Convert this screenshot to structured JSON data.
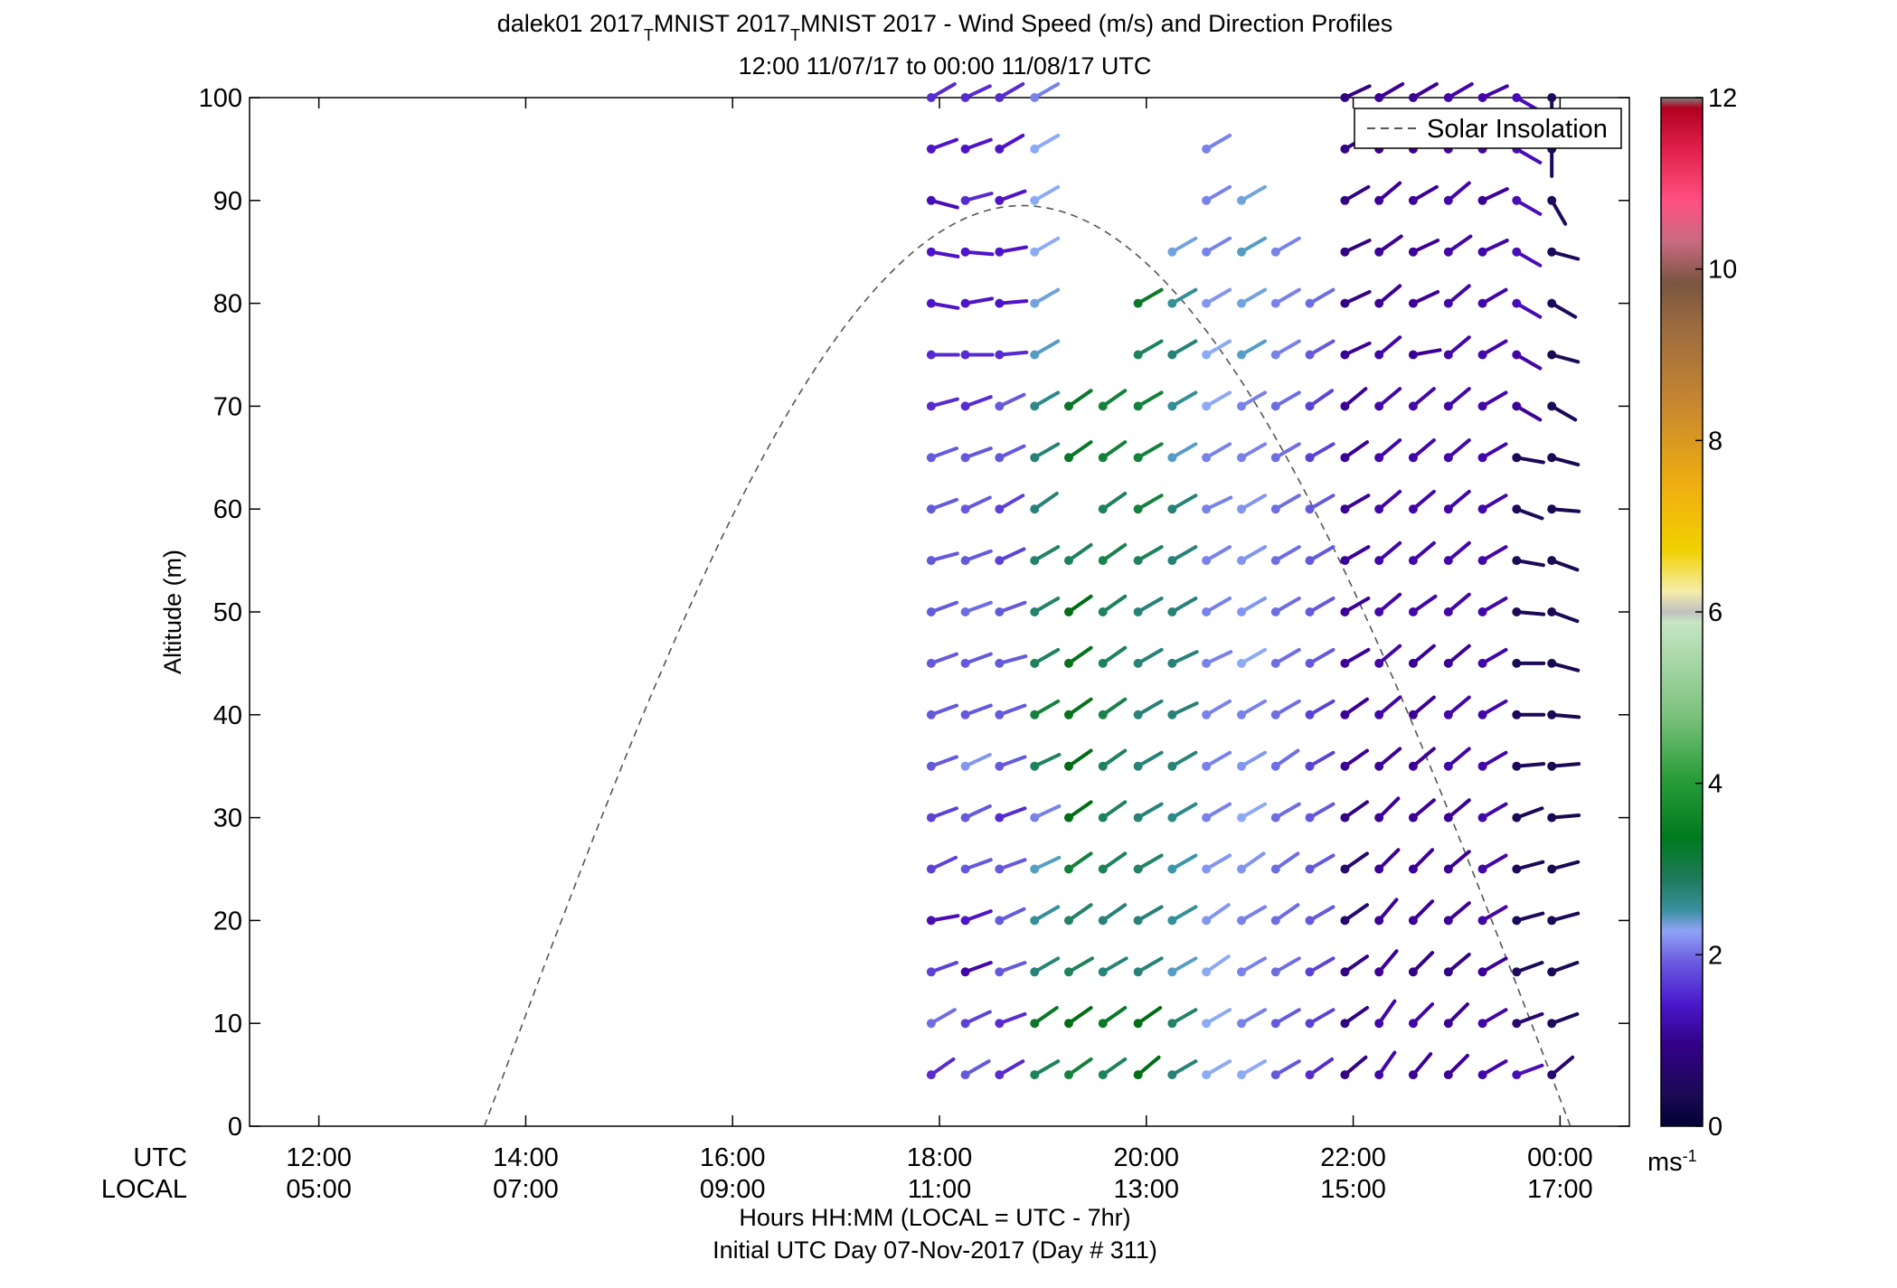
{
  "chart_data": {
    "type": "wind-barb-profile",
    "title": {
      "part1": "dalek01 2017",
      "sub1": "T",
      "part2": "MNIST 2017",
      "sub2": "T",
      "part3": "MNIST 2017 - Wind Speed (m/s) and Direction Profiles"
    },
    "subtitle": "12:00 11/07/17 to 00:00 11/08/17  UTC",
    "ylabel": "Altitude (m)",
    "xlabel": "Hours HH:MM  (LOCAL = UTC - 7hr)",
    "xlabel2": "Initial UTC Day 07-Nov-2017 (Day # 311)",
    "row_label_utc": "UTC",
    "row_label_local": "LOCAL",
    "xlim_hours": [
      11.33,
      24.67
    ],
    "ylim": [
      0,
      100
    ],
    "yticks": [
      0,
      10,
      20,
      30,
      40,
      50,
      60,
      70,
      80,
      90,
      100
    ],
    "xticks": [
      {
        "hour": 12,
        "utc": "12:00",
        "local": "05:00"
      },
      {
        "hour": 14,
        "utc": "14:00",
        "local": "07:00"
      },
      {
        "hour": 16,
        "utc": "16:00",
        "local": "09:00"
      },
      {
        "hour": 18,
        "utc": "18:00",
        "local": "11:00"
      },
      {
        "hour": 20,
        "utc": "20:00",
        "local": "13:00"
      },
      {
        "hour": 22,
        "utc": "22:00",
        "local": "15:00"
      },
      {
        "hour": 24,
        "utc": "00:00",
        "local": "17:00"
      }
    ],
    "legend": {
      "label": "Solar Insolation",
      "position": "top-right",
      "style": "dashed",
      "color": "#555555"
    },
    "solar_insolation": {
      "start_hour": 13.6,
      "peak_hour": 18.8,
      "peak_alt": 89.5,
      "end_hour": 24.1
    },
    "colorbar": {
      "label": "ms",
      "label_sup": "-1",
      "ticks": [
        0,
        2,
        4,
        6,
        8,
        10,
        12
      ],
      "range": [
        0,
        12
      ]
    },
    "heights": [
      5,
      10,
      15,
      20,
      25,
      30,
      35,
      40,
      45,
      50,
      55,
      60,
      65,
      70,
      75,
      80,
      85,
      90,
      95,
      100
    ],
    "times_hours": [
      17.92,
      18.25,
      18.58,
      18.92,
      19.25,
      19.58,
      19.92,
      20.25,
      20.58,
      20.92,
      21.25,
      21.58,
      21.92,
      22.25,
      22.58,
      22.92,
      23.25,
      23.58,
      23.92
    ],
    "speed_rows": [
      [
        1.6,
        1.8,
        1.6,
        3.0,
        3.2,
        3.0,
        3.6,
        2.8,
        2.2,
        2.2,
        1.8,
        1.6,
        1.1,
        1.3,
        1.2,
        1.2,
        1.3,
        1.4,
        1.0
      ],
      [
        1.9,
        1.7,
        1.6,
        3.4,
        3.6,
        3.4,
        3.6,
        2.9,
        2.2,
        2.0,
        1.8,
        1.7,
        1.1,
        1.3,
        1.3,
        1.2,
        1.3,
        1.0,
        0.9
      ],
      [
        1.7,
        1.3,
        1.8,
        2.8,
        3.0,
        2.8,
        2.8,
        2.4,
        2.2,
        2.0,
        1.9,
        1.7,
        1.1,
        1.2,
        1.1,
        1.1,
        1.2,
        0.9,
        0.8
      ],
      [
        1.4,
        1.5,
        1.8,
        2.6,
        2.9,
        2.8,
        2.8,
        2.6,
        2.1,
        2.0,
        1.9,
        1.8,
        1.0,
        1.2,
        1.2,
        1.2,
        1.3,
        0.9,
        0.8
      ],
      [
        1.7,
        1.8,
        1.8,
        2.4,
        3.2,
        3.0,
        2.9,
        2.5,
        2.1,
        2.1,
        1.9,
        1.8,
        1.0,
        1.2,
        1.2,
        1.2,
        1.3,
        0.8,
        0.7
      ],
      [
        1.7,
        1.8,
        1.6,
        2.0,
        3.6,
        3.0,
        2.8,
        2.7,
        2.0,
        2.2,
        1.9,
        1.8,
        1.1,
        1.2,
        1.2,
        1.2,
        1.3,
        0.8,
        0.7
      ],
      [
        1.8,
        2.1,
        1.8,
        3.0,
        3.6,
        3.0,
        2.8,
        2.8,
        2.0,
        2.1,
        1.9,
        1.7,
        1.2,
        1.2,
        1.2,
        1.3,
        1.3,
        0.8,
        0.7
      ],
      [
        1.8,
        1.8,
        1.8,
        3.2,
        3.7,
        3.1,
        2.8,
        2.8,
        2.0,
        2.0,
        1.9,
        1.7,
        1.2,
        1.3,
        1.2,
        1.3,
        1.3,
        0.8,
        0.7
      ],
      [
        1.8,
        1.8,
        1.8,
        3.0,
        3.5,
        3.0,
        2.8,
        2.8,
        2.0,
        2.2,
        1.9,
        1.8,
        1.2,
        1.3,
        1.2,
        1.2,
        1.3,
        0.8,
        0.7
      ],
      [
        1.8,
        1.9,
        1.8,
        2.9,
        3.6,
        3.0,
        2.8,
        2.8,
        2.0,
        2.1,
        1.9,
        1.8,
        1.2,
        1.3,
        1.3,
        1.3,
        1.3,
        0.8,
        0.7
      ],
      [
        1.8,
        1.8,
        1.7,
        2.9,
        3.0,
        3.1,
        3.0,
        2.8,
        2.0,
        2.1,
        1.9,
        1.8,
        1.2,
        1.3,
        1.3,
        1.3,
        1.3,
        0.8,
        0.7
      ],
      [
        1.8,
        1.8,
        1.7,
        2.8,
        null,
        3.0,
        3.2,
        2.8,
        2.0,
        2.1,
        1.9,
        1.8,
        1.2,
        1.3,
        1.3,
        1.3,
        1.3,
        0.8,
        0.7
      ],
      [
        1.8,
        1.8,
        1.8,
        2.8,
        3.4,
        3.2,
        3.2,
        2.4,
        2.0,
        2.0,
        1.9,
        1.7,
        1.2,
        1.3,
        1.3,
        1.3,
        1.3,
        0.8,
        0.7
      ],
      [
        1.6,
        1.6,
        1.8,
        2.7,
        3.4,
        3.2,
        3.2,
        2.6,
        2.2,
        2.0,
        1.9,
        1.7,
        1.2,
        1.3,
        1.3,
        1.3,
        1.3,
        1.2,
        0.8
      ],
      [
        1.6,
        1.6,
        1.6,
        2.4,
        null,
        null,
        3.0,
        2.8,
        2.2,
        2.4,
        2.0,
        1.8,
        1.2,
        1.3,
        1.2,
        1.3,
        1.3,
        1.3,
        0.8
      ],
      [
        1.5,
        1.5,
        1.5,
        2.3,
        null,
        null,
        3.4,
        2.6,
        2.1,
        2.3,
        2.0,
        1.9,
        1.1,
        1.2,
        1.2,
        1.3,
        1.3,
        1.4,
        0.9
      ],
      [
        1.5,
        1.5,
        1.5,
        2.2,
        null,
        null,
        null,
        2.3,
        2.0,
        2.4,
        2.0,
        null,
        1.1,
        1.2,
        1.2,
        1.3,
        1.3,
        1.4,
        0.8
      ],
      [
        1.4,
        1.6,
        1.5,
        2.2,
        null,
        null,
        null,
        null,
        2.0,
        2.3,
        null,
        null,
        1.1,
        1.2,
        1.2,
        1.3,
        1.2,
        1.4,
        0.9
      ],
      [
        1.5,
        1.5,
        1.5,
        2.2,
        null,
        null,
        null,
        null,
        2.0,
        null,
        null,
        null,
        1.1,
        1.2,
        1.2,
        1.3,
        1.3,
        1.4,
        0.9
      ],
      [
        1.6,
        1.6,
        1.6,
        2.0,
        null,
        null,
        null,
        null,
        null,
        null,
        null,
        null,
        1.1,
        1.2,
        1.2,
        1.3,
        1.3,
        1.4,
        0.9
      ]
    ],
    "dir_rows": [
      [
        235,
        240,
        240,
        240,
        235,
        235,
        230,
        240,
        240,
        240,
        240,
        235,
        230,
        215,
        220,
        225,
        240,
        250,
        230
      ],
      [
        240,
        245,
        250,
        235,
        235,
        235,
        235,
        240,
        240,
        240,
        240,
        240,
        235,
        215,
        225,
        225,
        240,
        250,
        250
      ],
      [
        250,
        250,
        250,
        240,
        240,
        240,
        240,
        240,
        235,
        240,
        240,
        240,
        235,
        220,
        225,
        230,
        240,
        250,
        250
      ],
      [
        260,
        250,
        245,
        240,
        235,
        235,
        240,
        240,
        235,
        240,
        235,
        240,
        235,
        220,
        225,
        230,
        240,
        255,
        255
      ],
      [
        245,
        250,
        250,
        245,
        235,
        235,
        240,
        240,
        240,
        235,
        235,
        240,
        235,
        225,
        225,
        230,
        240,
        255,
        255
      ],
      [
        250,
        245,
        250,
        245,
        235,
        235,
        240,
        240,
        240,
        240,
        240,
        240,
        235,
        225,
        230,
        230,
        240,
        250,
        265
      ],
      [
        250,
        245,
        250,
        245,
        235,
        235,
        240,
        240,
        240,
        240,
        235,
        240,
        235,
        230,
        230,
        230,
        240,
        265,
        265
      ],
      [
        250,
        250,
        250,
        240,
        235,
        235,
        240,
        245,
        240,
        240,
        240,
        240,
        235,
        230,
        230,
        230,
        240,
        270,
        275
      ],
      [
        250,
        250,
        255,
        240,
        235,
        235,
        240,
        245,
        245,
        240,
        240,
        240,
        240,
        230,
        230,
        230,
        240,
        270,
        285
      ],
      [
        250,
        250,
        250,
        240,
        235,
        235,
        240,
        240,
        240,
        240,
        240,
        240,
        240,
        230,
        235,
        230,
        240,
        275,
        290
      ],
      [
        255,
        250,
        245,
        240,
        235,
        235,
        240,
        240,
        240,
        240,
        240,
        240,
        240,
        230,
        230,
        230,
        240,
        280,
        290
      ],
      [
        250,
        245,
        240,
        235,
        null,
        235,
        240,
        240,
        245,
        240,
        240,
        240,
        240,
        230,
        230,
        230,
        240,
        290,
        275
      ],
      [
        250,
        250,
        245,
        240,
        235,
        235,
        240,
        240,
        240,
        240,
        240,
        240,
        235,
        230,
        230,
        230,
        240,
        280,
        285
      ],
      [
        255,
        250,
        245,
        240,
        235,
        235,
        240,
        240,
        240,
        240,
        240,
        235,
        230,
        230,
        230,
        230,
        240,
        300,
        300
      ],
      [
        270,
        270,
        265,
        240,
        null,
        null,
        240,
        240,
        240,
        240,
        240,
        240,
        245,
        230,
        260,
        230,
        240,
        300,
        285
      ],
      [
        280,
        260,
        265,
        240,
        null,
        null,
        240,
        240,
        240,
        240,
        240,
        240,
        245,
        230,
        245,
        230,
        240,
        300,
        300
      ],
      [
        280,
        275,
        260,
        240,
        null,
        null,
        null,
        240,
        240,
        240,
        240,
        null,
        245,
        235,
        245,
        235,
        245,
        300,
        285
      ],
      [
        285,
        255,
        250,
        240,
        null,
        null,
        null,
        null,
        240,
        240,
        null,
        null,
        240,
        230,
        240,
        230,
        245,
        300,
        330
      ],
      [
        250,
        250,
        240,
        240,
        null,
        null,
        null,
        null,
        240,
        null,
        null,
        null,
        240,
        230,
        240,
        235,
        245,
        300,
        0
      ],
      [
        240,
        245,
        240,
        240,
        null,
        null,
        null,
        null,
        null,
        null,
        null,
        null,
        245,
        240,
        240,
        240,
        245,
        300,
        0
      ]
    ]
  }
}
